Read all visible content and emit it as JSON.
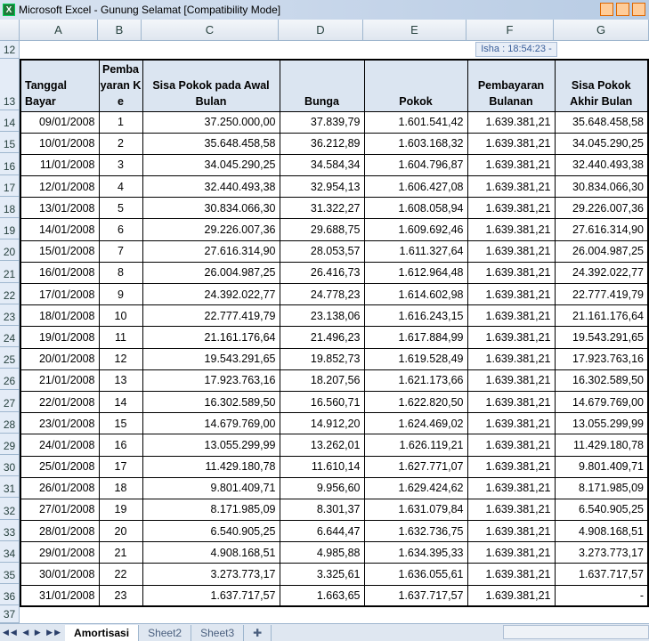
{
  "window": {
    "title": "Microsoft Excel - Gunung Selamat  [Compatibility Mode]"
  },
  "overlay": {
    "isha": "Isha : 18:54:23 -"
  },
  "columns": [
    "A",
    "B",
    "C",
    "D",
    "E",
    "F",
    "G"
  ],
  "row_numbers": {
    "top": "12",
    "header": "13",
    "bottom": "37"
  },
  "headers": [
    "Tanggal Bayar",
    "Pembayaran Ke",
    "Sisa Pokok pada Awal Bulan",
    "Bunga",
    "Pokok",
    "Pembayaran Bulanan",
    "Sisa Pokok Akhir Bulan"
  ],
  "rows": [
    [
      "14",
      "09/01/2008",
      "1",
      "37.250.000,00",
      "37.839,79",
      "1.601.541,42",
      "1.639.381,21",
      "35.648.458,58"
    ],
    [
      "15",
      "10/01/2008",
      "2",
      "35.648.458,58",
      "36.212,89",
      "1.603.168,32",
      "1.639.381,21",
      "34.045.290,25"
    ],
    [
      "16",
      "11/01/2008",
      "3",
      "34.045.290,25",
      "34.584,34",
      "1.604.796,87",
      "1.639.381,21",
      "32.440.493,38"
    ],
    [
      "17",
      "12/01/2008",
      "4",
      "32.440.493,38",
      "32.954,13",
      "1.606.427,08",
      "1.639.381,21",
      "30.834.066,30"
    ],
    [
      "18",
      "13/01/2008",
      "5",
      "30.834.066,30",
      "31.322,27",
      "1.608.058,94",
      "1.639.381,21",
      "29.226.007,36"
    ],
    [
      "19",
      "14/01/2008",
      "6",
      "29.226.007,36",
      "29.688,75",
      "1.609.692,46",
      "1.639.381,21",
      "27.616.314,90"
    ],
    [
      "20",
      "15/01/2008",
      "7",
      "27.616.314,90",
      "28.053,57",
      "1.611.327,64",
      "1.639.381,21",
      "26.004.987,25"
    ],
    [
      "21",
      "16/01/2008",
      "8",
      "26.004.987,25",
      "26.416,73",
      "1.612.964,48",
      "1.639.381,21",
      "24.392.022,77"
    ],
    [
      "22",
      "17/01/2008",
      "9",
      "24.392.022,77",
      "24.778,23",
      "1.614.602,98",
      "1.639.381,21",
      "22.777.419,79"
    ],
    [
      "23",
      "18/01/2008",
      "10",
      "22.777.419,79",
      "23.138,06",
      "1.616.243,15",
      "1.639.381,21",
      "21.161.176,64"
    ],
    [
      "24",
      "19/01/2008",
      "11",
      "21.161.176,64",
      "21.496,23",
      "1.617.884,99",
      "1.639.381,21",
      "19.543.291,65"
    ],
    [
      "25",
      "20/01/2008",
      "12",
      "19.543.291,65",
      "19.852,73",
      "1.619.528,49",
      "1.639.381,21",
      "17.923.763,16"
    ],
    [
      "26",
      "21/01/2008",
      "13",
      "17.923.763,16",
      "18.207,56",
      "1.621.173,66",
      "1.639.381,21",
      "16.302.589,50"
    ],
    [
      "27",
      "22/01/2008",
      "14",
      "16.302.589,50",
      "16.560,71",
      "1.622.820,50",
      "1.639.381,21",
      "14.679.769,00"
    ],
    [
      "28",
      "23/01/2008",
      "15",
      "14.679.769,00",
      "14.912,20",
      "1.624.469,02",
      "1.639.381,21",
      "13.055.299,99"
    ],
    [
      "29",
      "24/01/2008",
      "16",
      "13.055.299,99",
      "13.262,01",
      "1.626.119,21",
      "1.639.381,21",
      "11.429.180,78"
    ],
    [
      "30",
      "25/01/2008",
      "17",
      "11.429.180,78",
      "11.610,14",
      "1.627.771,07",
      "1.639.381,21",
      "9.801.409,71"
    ],
    [
      "31",
      "26/01/2008",
      "18",
      "9.801.409,71",
      "9.956,60",
      "1.629.424,62",
      "1.639.381,21",
      "8.171.985,09"
    ],
    [
      "32",
      "27/01/2008",
      "19",
      "8.171.985,09",
      "8.301,37",
      "1.631.079,84",
      "1.639.381,21",
      "6.540.905,25"
    ],
    [
      "33",
      "28/01/2008",
      "20",
      "6.540.905,25",
      "6.644,47",
      "1.632.736,75",
      "1.639.381,21",
      "4.908.168,51"
    ],
    [
      "34",
      "29/01/2008",
      "21",
      "4.908.168,51",
      "4.985,88",
      "1.634.395,33",
      "1.639.381,21",
      "3.273.773,17"
    ],
    [
      "35",
      "30/01/2008",
      "22",
      "3.273.773,17",
      "3.325,61",
      "1.636.055,61",
      "1.639.381,21",
      "1.637.717,57"
    ],
    [
      "36",
      "31/01/2008",
      "23",
      "1.637.717,57",
      "1.663,65",
      "1.637.717,57",
      "1.639.381,21",
      "-"
    ]
  ],
  "sheets": [
    "Amortisasi",
    "Sheet2",
    "Sheet3"
  ],
  "active_sheet": "Amortisasi"
}
